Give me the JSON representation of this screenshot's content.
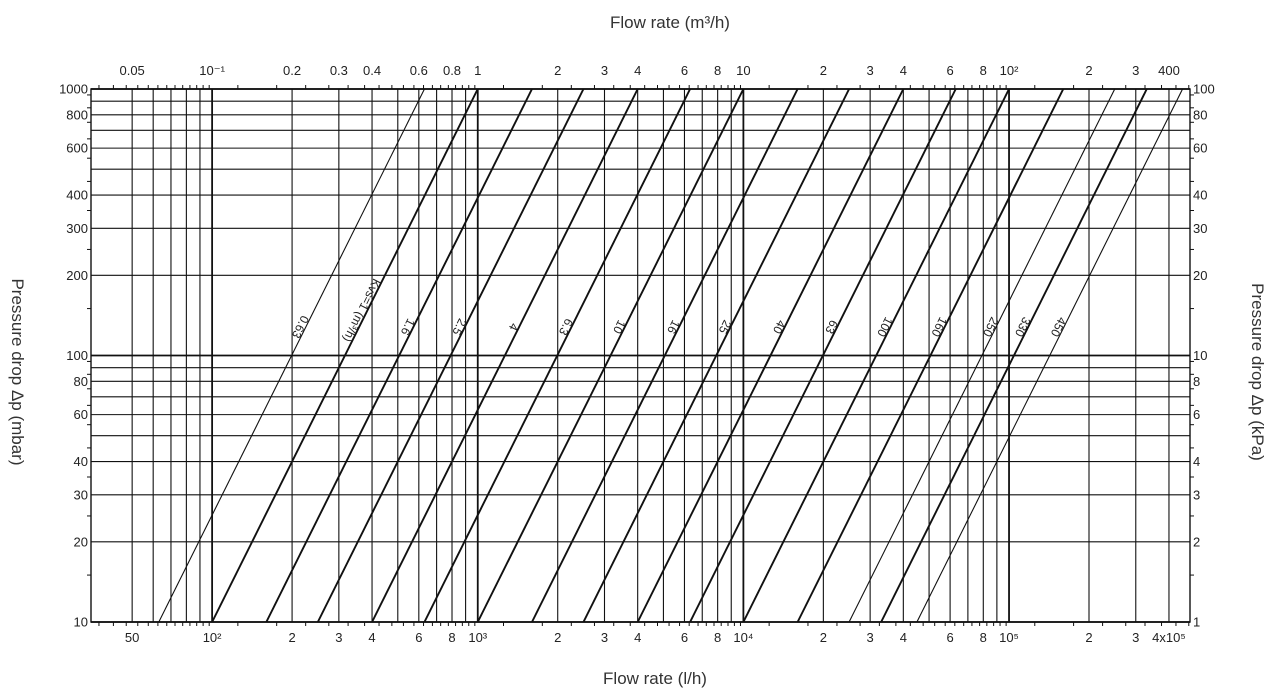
{
  "chart_data": {
    "type": "line",
    "title": "",
    "x_bottom_label": "Flow rate (l/h)",
    "x_top_label": "Flow rate (m³/h)",
    "y_left_label": "Pressure drop Δp (mbar)",
    "y_right_label": "Pressure drop Δp (kPa)",
    "x_scale": "log",
    "y_scale": "log",
    "xlim": [
      35,
      480000
    ],
    "ylim": [
      10,
      1000
    ],
    "grid": true,
    "x_bottom_ticks": [
      {
        "value": 50,
        "label": "50"
      },
      {
        "value": 100,
        "label": "10²"
      },
      {
        "value": 200,
        "label": "2"
      },
      {
        "value": 300,
        "label": "3"
      },
      {
        "value": 400,
        "label": "4"
      },
      {
        "value": 600,
        "label": "6"
      },
      {
        "value": 800,
        "label": "8"
      },
      {
        "value": 1000,
        "label": "10³"
      },
      {
        "value": 2000,
        "label": "2"
      },
      {
        "value": 3000,
        "label": "3"
      },
      {
        "value": 4000,
        "label": "4"
      },
      {
        "value": 6000,
        "label": "6"
      },
      {
        "value": 8000,
        "label": "8"
      },
      {
        "value": 10000,
        "label": "10⁴"
      },
      {
        "value": 20000,
        "label": "2"
      },
      {
        "value": 30000,
        "label": "3"
      },
      {
        "value": 40000,
        "label": "4"
      },
      {
        "value": 60000,
        "label": "6"
      },
      {
        "value": 80000,
        "label": "8"
      },
      {
        "value": 100000,
        "label": "10⁵"
      },
      {
        "value": 200000,
        "label": "2"
      },
      {
        "value": 300000,
        "label": "3"
      },
      {
        "value": 400000,
        "label": "4x10⁵"
      }
    ],
    "x_top_ticks": [
      {
        "value": 50,
        "label": "0.05"
      },
      {
        "value": 100,
        "label": "10⁻¹"
      },
      {
        "value": 200,
        "label": "0.2"
      },
      {
        "value": 300,
        "label": "0.3"
      },
      {
        "value": 400,
        "label": "0.4"
      },
      {
        "value": 600,
        "label": "0.6"
      },
      {
        "value": 800,
        "label": "0.8"
      },
      {
        "value": 1000,
        "label": "1"
      },
      {
        "value": 2000,
        "label": "2"
      },
      {
        "value": 3000,
        "label": "3"
      },
      {
        "value": 4000,
        "label": "4"
      },
      {
        "value": 6000,
        "label": "6"
      },
      {
        "value": 8000,
        "label": "8"
      },
      {
        "value": 10000,
        "label": "10"
      },
      {
        "value": 20000,
        "label": "2"
      },
      {
        "value": 30000,
        "label": "3"
      },
      {
        "value": 40000,
        "label": "4"
      },
      {
        "value": 60000,
        "label": "6"
      },
      {
        "value": 80000,
        "label": "8"
      },
      {
        "value": 100000,
        "label": "10²"
      },
      {
        "value": 200000,
        "label": "2"
      },
      {
        "value": 300000,
        "label": "3"
      },
      {
        "value": 400000,
        "label": "400"
      }
    ],
    "y_left_ticks": [
      {
        "value": 10,
        "label": "10"
      },
      {
        "value": 20,
        "label": "20"
      },
      {
        "value": 30,
        "label": "30"
      },
      {
        "value": 40,
        "label": "40"
      },
      {
        "value": 60,
        "label": "60"
      },
      {
        "value": 80,
        "label": "80"
      },
      {
        "value": 100,
        "label": "100"
      },
      {
        "value": 200,
        "label": "200"
      },
      {
        "value": 300,
        "label": "300"
      },
      {
        "value": 400,
        "label": "400"
      },
      {
        "value": 600,
        "label": "600"
      },
      {
        "value": 800,
        "label": "800"
      },
      {
        "value": 1000,
        "label": "1000"
      }
    ],
    "y_right_ticks": [
      {
        "value": 10,
        "label": "1"
      },
      {
        "value": 20,
        "label": "2"
      },
      {
        "value": 30,
        "label": "3"
      },
      {
        "value": 40,
        "label": "4"
      },
      {
        "value": 60,
        "label": "6"
      },
      {
        "value": 80,
        "label": "8"
      },
      {
        "value": 100,
        "label": "10"
      },
      {
        "value": 200,
        "label": "20"
      },
      {
        "value": 300,
        "label": "30"
      },
      {
        "value": 400,
        "label": "40"
      },
      {
        "value": 600,
        "label": "60"
      },
      {
        "value": 800,
        "label": "80"
      },
      {
        "value": 1000,
        "label": "100"
      }
    ],
    "y_grid": [
      10,
      20,
      30,
      40,
      50,
      60,
      70,
      80,
      90,
      100,
      200,
      300,
      400,
      500,
      600,
      700,
      800,
      900,
      1000
    ],
    "x_grid": [
      50,
      60,
      70,
      80,
      90,
      100,
      200,
      300,
      400,
      500,
      600,
      700,
      800,
      900,
      1000,
      2000,
      3000,
      4000,
      5000,
      6000,
      7000,
      8000,
      9000,
      10000,
      20000,
      30000,
      40000,
      50000,
      60000,
      70000,
      80000,
      90000,
      100000,
      200000,
      300000,
      400000
    ],
    "series": [
      {
        "name": "0.63",
        "kv": 0.63
      },
      {
        "name": "Kvs=1 (m³/h)",
        "kv": 1
      },
      {
        "name": "1.6",
        "kv": 1.6
      },
      {
        "name": "2.5",
        "kv": 2.5
      },
      {
        "name": "4",
        "kv": 4
      },
      {
        "name": "6.3",
        "kv": 6.3
      },
      {
        "name": "10",
        "kv": 10
      },
      {
        "name": "16",
        "kv": 16
      },
      {
        "name": "25",
        "kv": 25
      },
      {
        "name": "40",
        "kv": 40
      },
      {
        "name": "63",
        "kv": 63
      },
      {
        "name": "100",
        "kv": 100
      },
      {
        "name": "160",
        "kv": 160
      },
      {
        "name": "250",
        "kv": 250
      },
      {
        "name": "330",
        "kv": 330
      },
      {
        "name": "450",
        "kv": 450
      }
    ]
  }
}
